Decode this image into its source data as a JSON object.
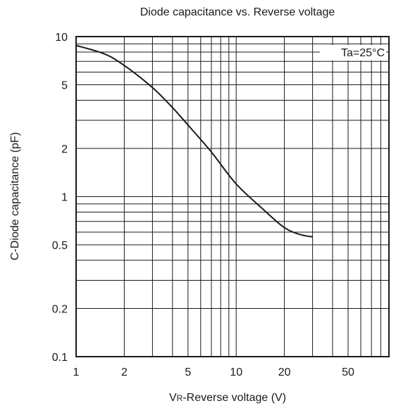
{
  "chart_data": {
    "type": "line",
    "title": "Diode capacitance vs. Reverse voltage",
    "xlabel": {
      "v": "V",
      "sub": "R",
      "rest": "-Reverse voltage (V)"
    },
    "ylabel": "C-Diode capacitance (pF)",
    "annotation": "Ta=25°C",
    "x_scale": "log",
    "y_scale": "log",
    "xlim": [
      1,
      90
    ],
    "ylim": [
      0.1,
      10
    ],
    "x_ticks": [
      {
        "value": 1,
        "label": "1"
      },
      {
        "value": 2,
        "label": "2"
      },
      {
        "value": 5,
        "label": "5"
      },
      {
        "value": 10,
        "label": "10"
      },
      {
        "value": 20,
        "label": "20"
      },
      {
        "value": 50,
        "label": "50"
      }
    ],
    "y_ticks": [
      {
        "value": 0.1,
        "label": "0.1"
      },
      {
        "value": 0.2,
        "label": "0.2"
      },
      {
        "value": 0.5,
        "label": "0.5"
      },
      {
        "value": 1,
        "label": "1"
      },
      {
        "value": 2,
        "label": "2"
      },
      {
        "value": 5,
        "label": "5"
      },
      {
        "value": 10,
        "label": "10"
      }
    ],
    "grid": true,
    "series": [
      {
        "x": [
          1,
          1.5,
          2,
          3,
          4,
          5,
          7,
          10,
          15,
          20,
          25,
          30
        ],
        "y": [
          8.8,
          7.8,
          6.6,
          4.8,
          3.6,
          2.8,
          1.9,
          1.2,
          0.82,
          0.64,
          0.58,
          0.56
        ]
      }
    ]
  }
}
